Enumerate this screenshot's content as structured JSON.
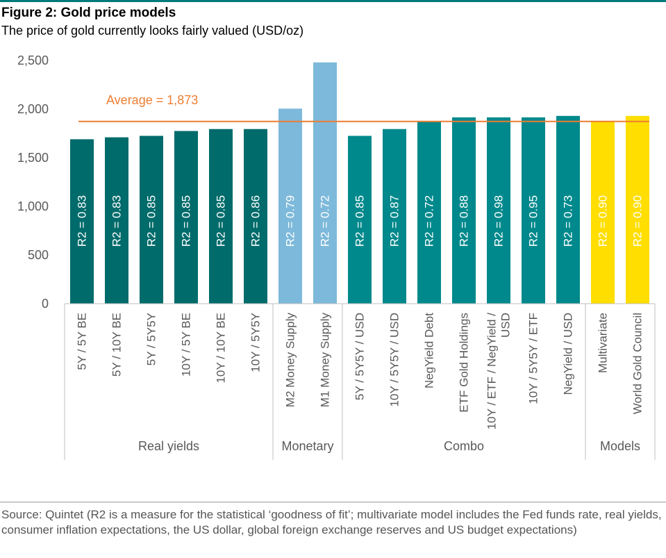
{
  "figure": {
    "title": "Figure 2: Gold price models",
    "subtitle": "The price of gold currently looks fairly valued (USD/oz)",
    "source": "Source: Quintet (R2 is a measure for the statistical ‘goodness of fit’; multivariate model includes the Fed funds rate, real yields, consumer inflation expectations, the US dollar, global foreign exchange reserves and US budget expectations)"
  },
  "chart_data": {
    "type": "bar",
    "ylim": [
      0,
      2500
    ],
    "yticks": [
      0,
      500,
      1000,
      1500,
      2000,
      2500
    ],
    "ytick_labels": [
      "0",
      "500",
      "1,000",
      "1,500",
      "2,000",
      "2,500"
    ],
    "grid": false,
    "average": {
      "value": 1873,
      "label": "Average = 1,873",
      "color": "#ed7d31"
    },
    "categories": [
      {
        "lines": [
          "5Y / 5Y BE"
        ],
        "value": 1690,
        "r2": "R2 = 0.83",
        "group": 0
      },
      {
        "lines": [
          "5Y / 10Y BE"
        ],
        "value": 1710,
        "r2": "R2 = 0.83",
        "group": 0
      },
      {
        "lines": [
          "5Y / 5Y5Y"
        ],
        "value": 1725,
        "r2": "R2 = 0.85",
        "group": 0
      },
      {
        "lines": [
          "10Y / 5Y BE"
        ],
        "value": 1775,
        "r2": "R2 = 0.85",
        "group": 0
      },
      {
        "lines": [
          "10Y / 10Y BE"
        ],
        "value": 1795,
        "r2": "R2 = 0.85",
        "group": 0
      },
      {
        "lines": [
          "10Y / 5Y5Y"
        ],
        "value": 1795,
        "r2": "R2 = 0.86",
        "group": 0
      },
      {
        "lines": [
          "M2 Money Supply"
        ],
        "value": 2005,
        "r2": "R2 = 0.79",
        "group": 1
      },
      {
        "lines": [
          "M1 Money Supply"
        ],
        "value": 2480,
        "r2": "R2 = 0.72",
        "group": 1
      },
      {
        "lines": [
          "5Y / 5Y5Y / USD"
        ],
        "value": 1725,
        "r2": "R2 = 0.85",
        "group": 2
      },
      {
        "lines": [
          "10Y / 5Y5Y / USD"
        ],
        "value": 1795,
        "r2": "R2 = 0.87",
        "group": 2
      },
      {
        "lines": [
          "NegYield Debt"
        ],
        "value": 1875,
        "r2": "R2 = 0.72",
        "group": 2
      },
      {
        "lines": [
          "ETF Gold Holdings"
        ],
        "value": 1915,
        "r2": "R2 = 0.88",
        "group": 2
      },
      {
        "lines": [
          "10Y / ETF / NegYield /",
          "USD"
        ],
        "value": 1915,
        "r2": "R2 = 0.98",
        "group": 2
      },
      {
        "lines": [
          "10Y / 5Y5Y / ETF"
        ],
        "value": 1915,
        "r2": "R2 = 0.95",
        "group": 2
      },
      {
        "lines": [
          "NegYield / USD"
        ],
        "value": 1930,
        "r2": "R2 = 0.73",
        "group": 2
      },
      {
        "lines": [
          "Multivariate"
        ],
        "value": 1875,
        "r2": "R2 = 0.90",
        "group": 3
      },
      {
        "lines": [
          "World Gold Council"
        ],
        "value": 1930,
        "r2": "R2 = 0.90",
        "group": 3
      }
    ],
    "groups": [
      {
        "label": "Real yields",
        "color": "#006b6b"
      },
      {
        "label": "Monetary",
        "color": "#7db9da"
      },
      {
        "label": "Combo",
        "color": "#00898c"
      },
      {
        "label": "Models",
        "color": "#ffde00"
      }
    ]
  }
}
